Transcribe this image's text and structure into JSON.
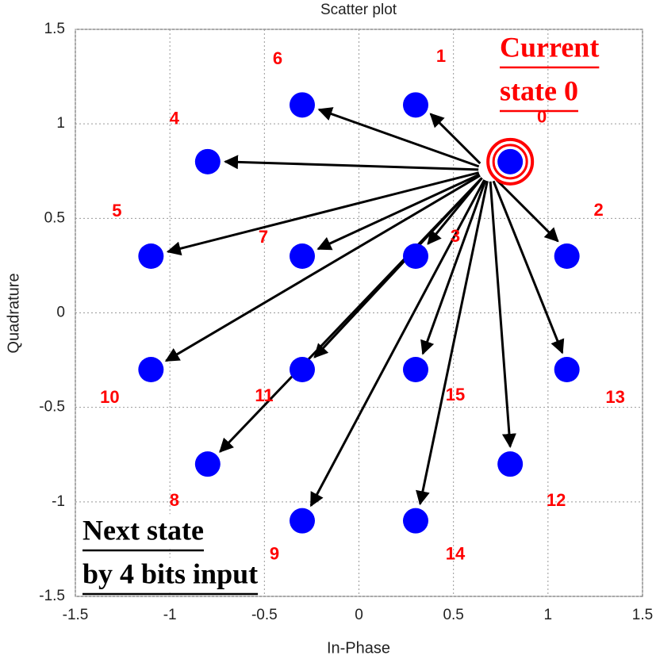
{
  "chart_data": {
    "type": "scatter",
    "title": "Scatter plot",
    "x_label": "In-Phase",
    "y_label": "Quadrature",
    "x": [
      0.8,
      0.3,
      1.1,
      0.3,
      -0.8,
      -1.1,
      -0.3,
      -0.3,
      -0.8,
      -0.3,
      -1.1,
      -0.3,
      0.8,
      1.1,
      0.3,
      0.3
    ],
    "series": [
      {
        "color": "#0000ff",
        "values": [
          0.8,
          1.1,
          0.3,
          0.3,
          0.8,
          0.3,
          1.1,
          0.3,
          -0.8,
          -1.1,
          -0.3,
          -0.3,
          -0.8,
          -0.3,
          -1.1,
          -0.3
        ]
      }
    ],
    "point_labels": [
      "0",
      "1",
      "2",
      "3",
      "4",
      "5",
      "6",
      "7",
      "8",
      "9",
      "10",
      "11",
      "12",
      "13",
      "14",
      "15"
    ],
    "highlight_index": 0,
    "xlim": [
      -1.5,
      1.5
    ],
    "ylim": [
      -1.5,
      1.5
    ],
    "xticks": [
      -1.5,
      -1,
      -0.5,
      0,
      0.5,
      1,
      1.5
    ],
    "yticks": [
      -1.5,
      -1,
      -0.5,
      0,
      0.5,
      1,
      1.5
    ],
    "grid": true,
    "annotations": {
      "current": [
        "Current",
        "state 0"
      ],
      "next": [
        "Next state",
        "by 4 bits input"
      ]
    }
  }
}
